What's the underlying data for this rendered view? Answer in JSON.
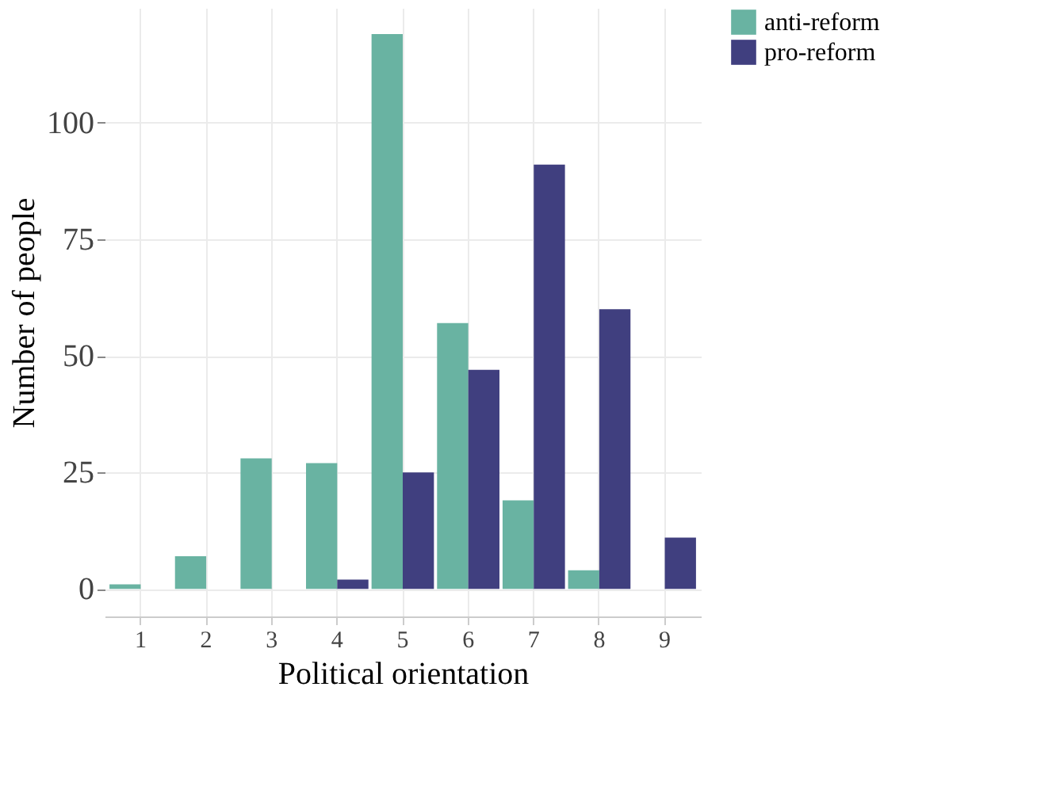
{
  "chart_data": {
    "type": "bar",
    "xlabel": "Political orientation",
    "ylabel": "Number of people",
    "categories": [
      "1",
      "2",
      "3",
      "4",
      "5",
      "6",
      "7",
      "8",
      "9"
    ],
    "series": [
      {
        "name": "anti-reform",
        "color": "#69b3a2",
        "values": [
          1,
          7,
          28,
          27,
          119,
          57,
          19,
          4,
          0
        ]
      },
      {
        "name": "pro-reform",
        "color": "#403f7f",
        "values": [
          0,
          0,
          0,
          2,
          25,
          47,
          91,
          60,
          11
        ]
      }
    ],
    "ylim": [
      -5.9,
      124.6
    ],
    "yticks": [
      0,
      25,
      50,
      75,
      100
    ],
    "grid": true,
    "legend": "right"
  }
}
